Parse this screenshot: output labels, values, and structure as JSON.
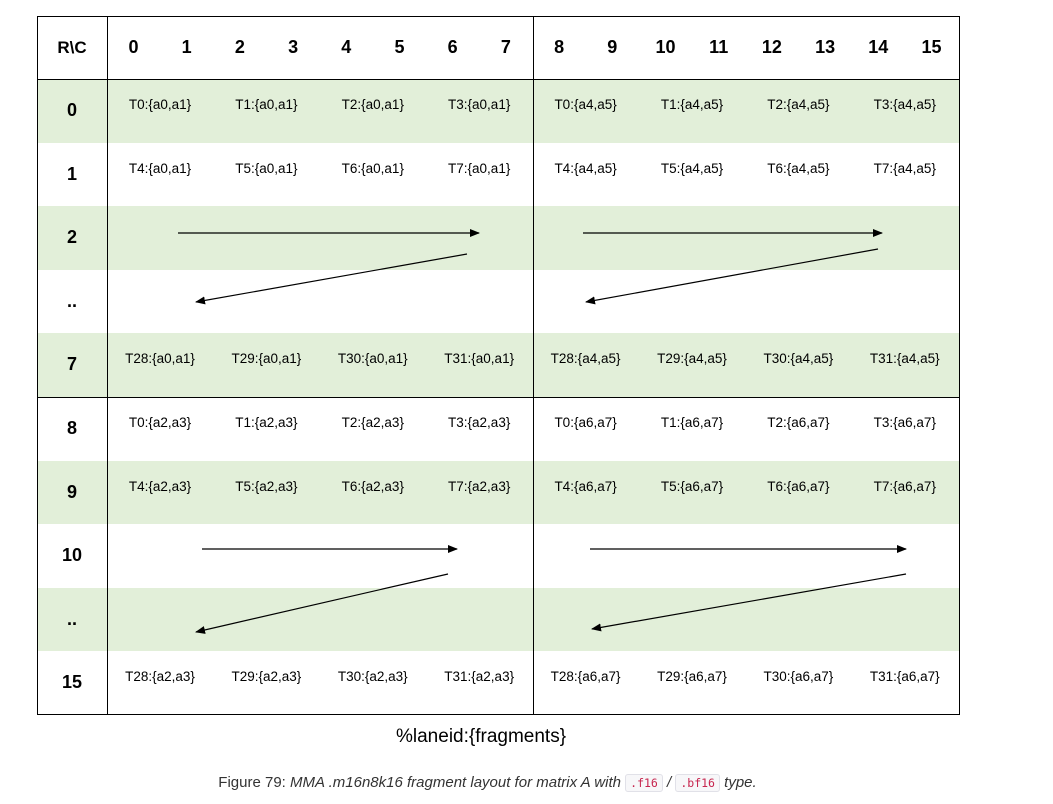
{
  "corner_label": "R\\C",
  "columns": [
    "0",
    "1",
    "2",
    "3",
    "4",
    "5",
    "6",
    "7",
    "8",
    "9",
    "10",
    "11",
    "12",
    "13",
    "14",
    "15"
  ],
  "rows": [
    {
      "label": "0",
      "shaded": true,
      "cells": [
        "T0:{a0,a1}",
        "T1:{a0,a1}",
        "T2:{a0,a1}",
        "T3:{a0,a1}",
        "T0:{a4,a5}",
        "T1:{a4,a5}",
        "T2:{a4,a5}",
        "T3:{a4,a5}"
      ]
    },
    {
      "label": "1",
      "shaded": false,
      "cells": [
        "T4:{a0,a1}",
        "T5:{a0,a1}",
        "T6:{a0,a1}",
        "T7:{a0,a1}",
        "T4:{a4,a5}",
        "T5:{a4,a5}",
        "T6:{a4,a5}",
        "T7:{a4,a5}"
      ]
    },
    {
      "label": "2",
      "shaded": true,
      "cells": []
    },
    {
      "label": "..",
      "shaded": false,
      "cells": []
    },
    {
      "label": "7",
      "shaded": true,
      "cells": [
        "T28:{a0,a1}",
        "T29:{a0,a1}",
        "T30:{a0,a1}",
        "T31:{a0,a1}",
        "T28:{a4,a5}",
        "T29:{a4,a5}",
        "T30:{a4,a5}",
        "T31:{a4,a5}"
      ]
    },
    {
      "label": "8",
      "shaded": false,
      "cells": [
        "T0:{a2,a3}",
        "T1:{a2,a3}",
        "T2:{a2,a3}",
        "T3:{a2,a3}",
        "T0:{a6,a7}",
        "T1:{a6,a7}",
        "T2:{a6,a7}",
        "T3:{a6,a7}"
      ]
    },
    {
      "label": "9",
      "shaded": true,
      "cells": [
        "T4:{a2,a3}",
        "T5:{a2,a3}",
        "T6:{a2,a3}",
        "T7:{a2,a3}",
        "T4:{a6,a7}",
        "T5:{a6,a7}",
        "T6:{a6,a7}",
        "T7:{a6,a7}"
      ]
    },
    {
      "label": "10",
      "shaded": false,
      "cells": []
    },
    {
      "label": "..",
      "shaded": true,
      "cells": []
    },
    {
      "label": "15",
      "shaded": false,
      "cells": [
        "T28:{a2,a3}",
        "T29:{a2,a3}",
        "T30:{a2,a3}",
        "T31:{a2,a3}",
        "T28:{a6,a7}",
        "T29:{a6,a7}",
        "T30:{a6,a7}",
        "T31:{a6,a7}"
      ]
    }
  ],
  "legend": "%laneid:{fragments}",
  "caption": {
    "prefix": "Figure 79: ",
    "italic": "MMA .m16n8k16 fragment layout for matrix A with",
    "code1": ".f16",
    "sep": "/",
    "code2": ".bf16",
    "suffix": "type."
  },
  "colors": {
    "shaded_row": "#e2efd9",
    "white_row": "#ffffff",
    "lines": "#000000",
    "code_text": "#c7254e"
  }
}
